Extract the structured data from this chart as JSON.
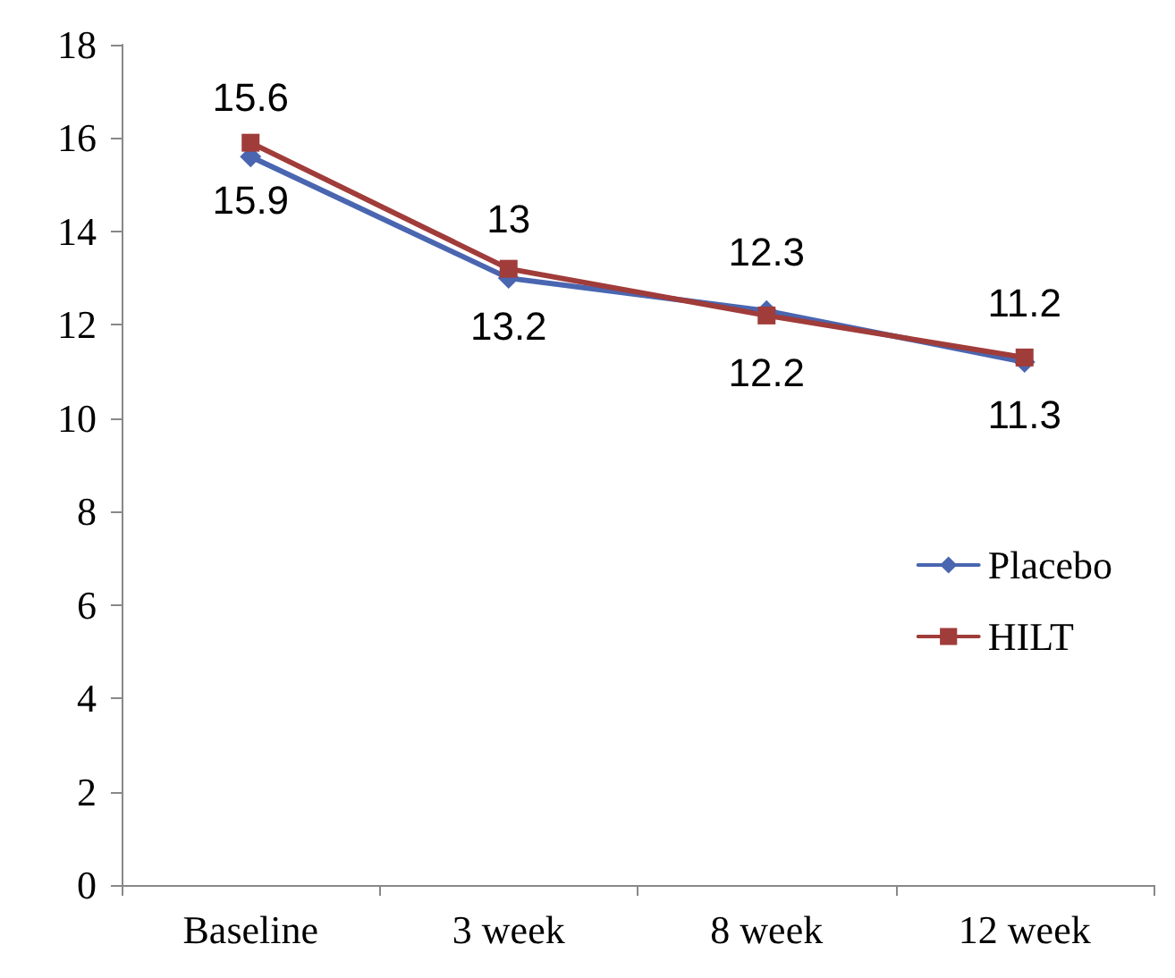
{
  "chart_data": {
    "type": "line",
    "categories": [
      "Baseline",
      "3 week",
      "8 week",
      "12 week"
    ],
    "series": [
      {
        "name": "Placebo",
        "color": "#4a66b0",
        "marker": "diamond",
        "values": [
          15.6,
          13,
          12.3,
          11.2
        ]
      },
      {
        "name": "HILT",
        "color": "#a03c3a",
        "marker": "square",
        "values": [
          15.9,
          13.2,
          12.2,
          11.3
        ]
      }
    ],
    "ylim": [
      0,
      18
    ],
    "yticks": [
      0,
      2,
      4,
      6,
      8,
      10,
      12,
      14,
      16,
      18
    ],
    "grid": false,
    "legend": "right",
    "data_labels": true,
    "line_style": "solid"
  }
}
